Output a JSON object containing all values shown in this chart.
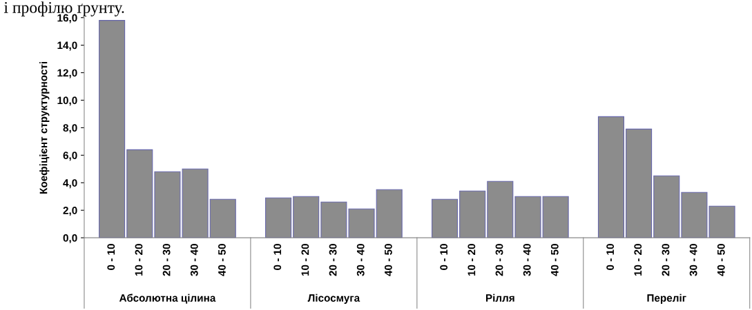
{
  "chart_data": {
    "type": "bar",
    "title": "і профілю ґрунту.",
    "ylabel": "Коефіцієнт структурності",
    "categories": [
      "0 - 10",
      "10 - 20",
      "20 - 30",
      "30 - 40",
      "40 - 50",
      "0 - 10",
      "10 - 20",
      "20 - 30",
      "30 - 40",
      "40 - 50",
      "0 - 10",
      "10 - 20",
      "20 - 30",
      "30 - 40",
      "40 - 50",
      "0 - 10",
      "10 - 20",
      "20 - 30",
      "30 - 40",
      "40 - 50"
    ],
    "values": [
      15.8,
      6.4,
      4.8,
      5.0,
      2.8,
      2.9,
      3.0,
      2.6,
      2.1,
      3.5,
      2.8,
      3.4,
      4.1,
      3.0,
      3.0,
      8.8,
      7.9,
      4.5,
      3.3,
      2.3
    ],
    "color": "#8c8c8c",
    "annotations": [
      "Абсолютна цілина",
      "Лісосмуга",
      "Рілля",
      "Переліг"
    ],
    "ylim": [
      0,
      16
    ],
    "yticks": [
      {
        "value": 0,
        "label": "0,0"
      },
      {
        "value": 2,
        "label": "2,0"
      },
      {
        "value": 4,
        "label": "4,0"
      },
      {
        "value": 6,
        "label": "6,0"
      },
      {
        "value": 8,
        "label": "8,0"
      },
      {
        "value": 10,
        "label": "10,0"
      },
      {
        "value": 12,
        "label": "12,0"
      },
      {
        "value": 14,
        "label": "14,0"
      },
      {
        "value": 16,
        "label": "16,0"
      }
    ],
    "grid": false,
    "legend": false
  }
}
